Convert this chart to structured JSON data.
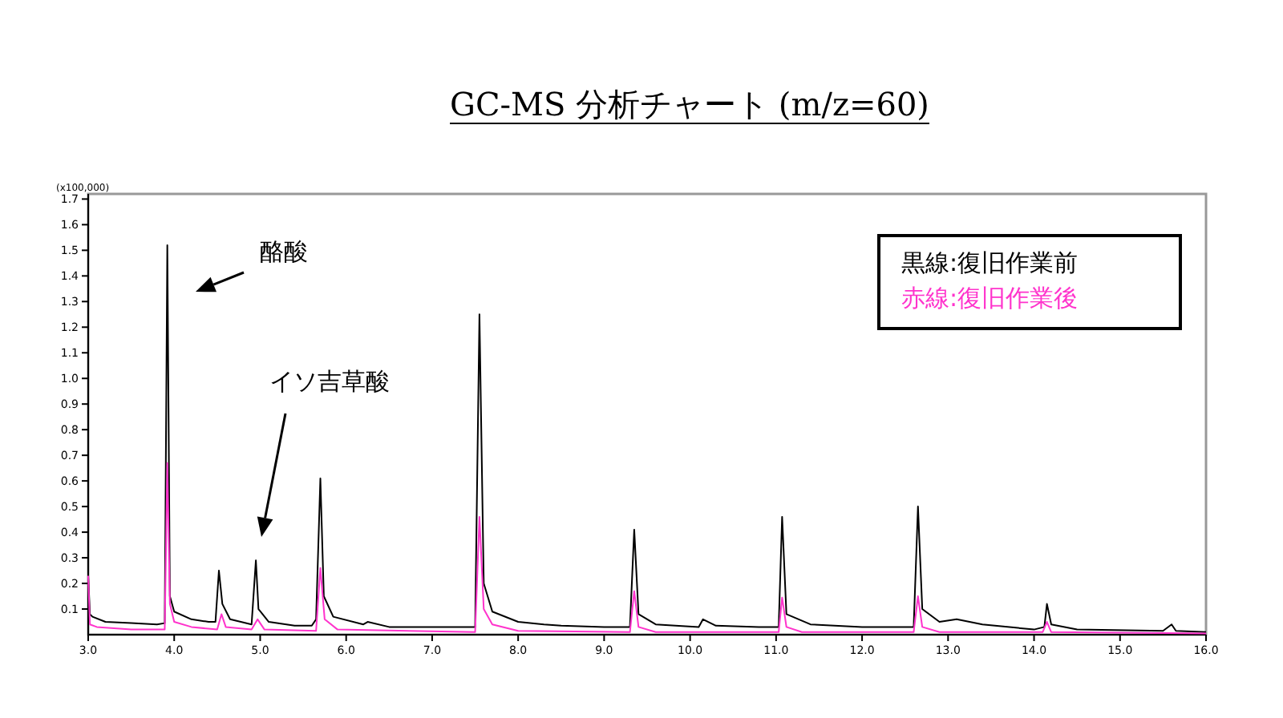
{
  "chart_data": {
    "type": "line",
    "title": "GC-MS 分析チャート (m/z=60)",
    "xlim": [
      3.0,
      16.0
    ],
    "ylim": [
      0,
      1.72
    ],
    "xticks": [
      {
        "value": 3,
        "label": "3.0"
      },
      {
        "value": 4,
        "label": "4.0"
      },
      {
        "value": 5,
        "label": "5.0"
      },
      {
        "value": 6,
        "label": "6.0"
      },
      {
        "value": 7,
        "label": "7.0"
      },
      {
        "value": 8,
        "label": "8.0"
      },
      {
        "value": 9,
        "label": "9.0"
      },
      {
        "value": 10,
        "label": "10.0"
      },
      {
        "value": 11,
        "label": "11.0"
      },
      {
        "value": 12,
        "label": "12.0"
      },
      {
        "value": 13,
        "label": "13.0"
      },
      {
        "value": 14,
        "label": "14.0"
      },
      {
        "value": 15,
        "label": "15.0"
      },
      {
        "value": 16,
        "label": "16.0"
      }
    ],
    "yticks": [
      0.1,
      0.2,
      0.3,
      0.4,
      0.5,
      0.6,
      0.7,
      0.8,
      0.9,
      {
        "value": 1,
        "label": "1.0"
      },
      1.1,
      1.2,
      1.3,
      1.4,
      1.5,
      1.6,
      1.7
    ],
    "legend": "top right",
    "series": [
      {
        "name": "黒線:復旧作業前",
        "color": "#000000",
        "x": [
          3.0,
          3.02,
          3.05,
          3.2,
          3.5,
          3.8,
          3.89,
          3.92,
          3.95,
          4.0,
          4.2,
          4.4,
          4.48,
          4.52,
          4.56,
          4.65,
          4.9,
          4.95,
          4.98,
          5.1,
          5.4,
          5.6,
          5.65,
          5.7,
          5.74,
          5.85,
          6.2,
          6.25,
          6.5,
          7.0,
          7.5,
          7.55,
          7.6,
          7.7,
          8.0,
          8.3,
          8.5,
          9.0,
          9.3,
          9.35,
          9.4,
          9.6,
          10.1,
          10.15,
          10.3,
          10.8,
          11.03,
          11.07,
          11.12,
          11.4,
          12.0,
          12.6,
          12.65,
          12.7,
          12.9,
          13.1,
          13.4,
          14.0,
          14.12,
          14.15,
          14.2,
          14.5,
          15.5,
          15.6,
          15.65,
          16.0
        ],
        "values": [
          0.23,
          0.08,
          0.07,
          0.05,
          0.045,
          0.04,
          0.045,
          1.52,
          0.15,
          0.09,
          0.06,
          0.05,
          0.05,
          0.25,
          0.12,
          0.06,
          0.04,
          0.29,
          0.1,
          0.05,
          0.035,
          0.035,
          0.06,
          0.61,
          0.15,
          0.07,
          0.04,
          0.05,
          0.03,
          0.03,
          0.03,
          1.25,
          0.2,
          0.09,
          0.05,
          0.04,
          0.035,
          0.03,
          0.03,
          0.41,
          0.08,
          0.04,
          0.03,
          0.06,
          0.035,
          0.03,
          0.03,
          0.46,
          0.08,
          0.04,
          0.03,
          0.03,
          0.5,
          0.1,
          0.05,
          0.06,
          0.04,
          0.02,
          0.03,
          0.12,
          0.04,
          0.02,
          0.015,
          0.04,
          0.015,
          0.01
        ]
      },
      {
        "name": "赤線:復旧作業後",
        "color": "#ff33cc",
        "x": [
          3.0,
          3.02,
          3.1,
          3.5,
          3.89,
          3.92,
          3.95,
          4.0,
          4.2,
          4.5,
          4.55,
          4.6,
          4.9,
          4.97,
          5.05,
          5.65,
          5.7,
          5.75,
          5.9,
          7.5,
          7.55,
          7.6,
          7.7,
          8.0,
          9.3,
          9.35,
          9.4,
          9.6,
          11.03,
          11.07,
          11.12,
          11.3,
          12.6,
          12.65,
          12.7,
          12.9,
          14.1,
          14.15,
          14.2,
          16.0
        ],
        "values": [
          0.23,
          0.04,
          0.03,
          0.02,
          0.02,
          0.67,
          0.12,
          0.05,
          0.03,
          0.02,
          0.08,
          0.03,
          0.02,
          0.06,
          0.02,
          0.015,
          0.26,
          0.06,
          0.02,
          0.01,
          0.46,
          0.1,
          0.04,
          0.015,
          0.01,
          0.17,
          0.03,
          0.01,
          0.01,
          0.145,
          0.03,
          0.01,
          0.01,
          0.15,
          0.03,
          0.01,
          0.01,
          0.05,
          0.01,
          0.005
        ]
      }
    ],
    "annotations": [
      "(x100,000)",
      "酪酸",
      "イソ吉草酸"
    ]
  }
}
